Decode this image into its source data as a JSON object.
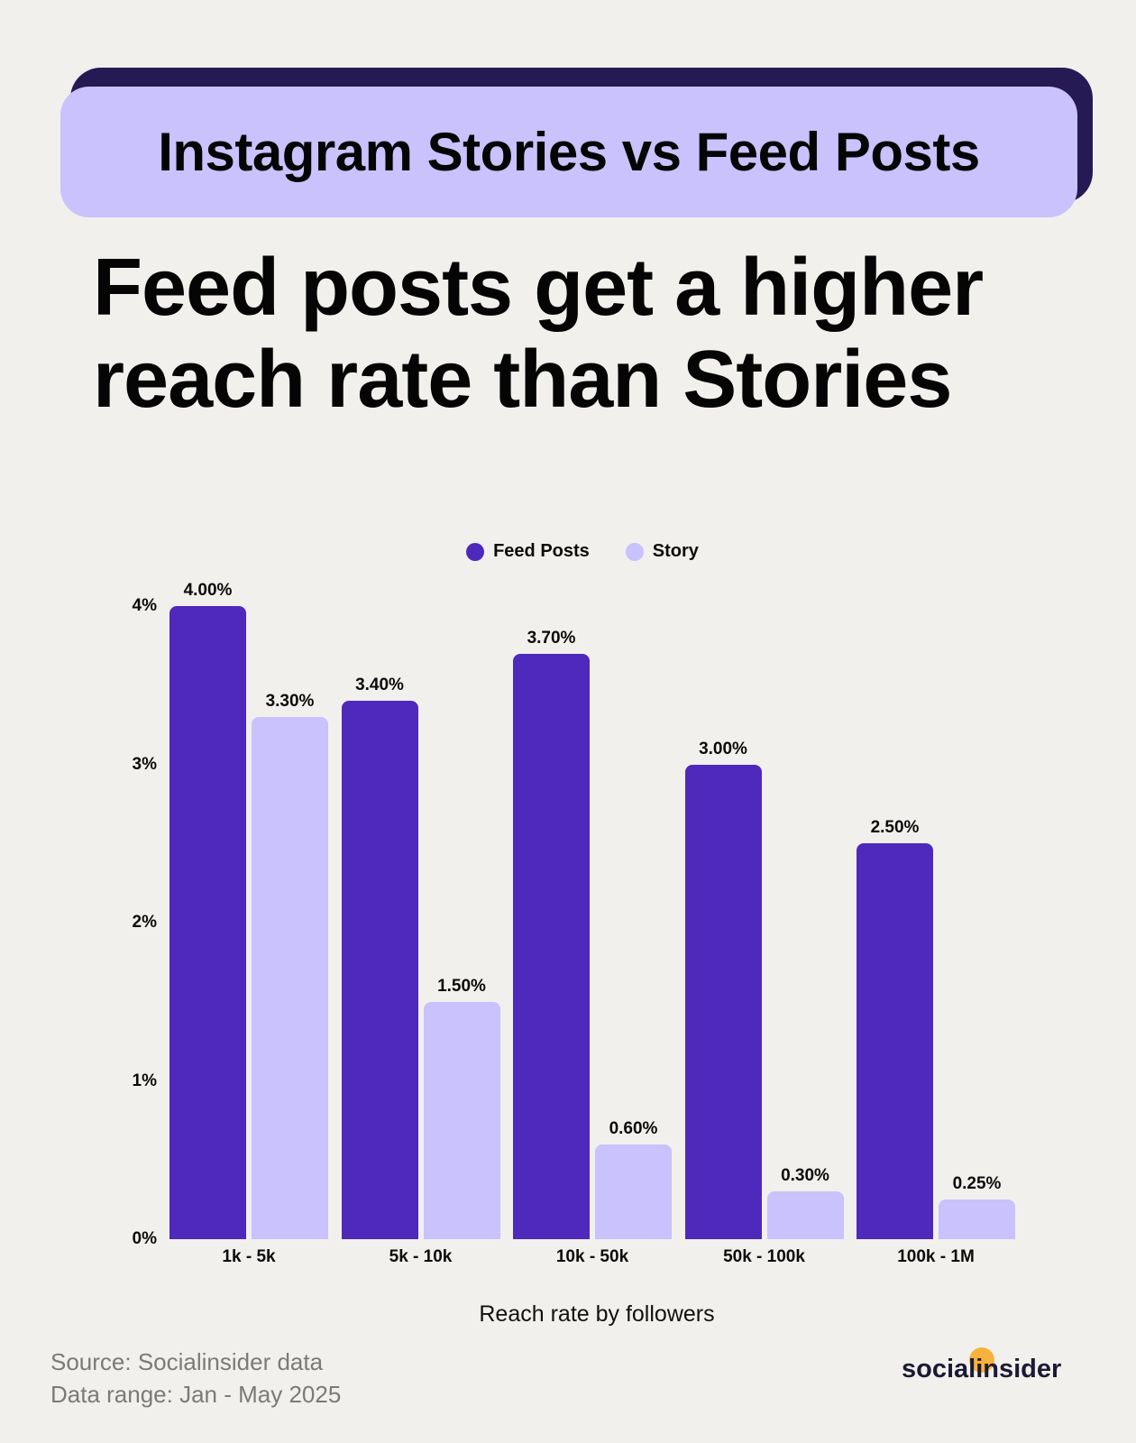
{
  "banner": {
    "title": "Instagram Stories vs Feed Posts"
  },
  "headline": {
    "line1": "Feed posts get a higher",
    "line2": "reach rate than Stories"
  },
  "legend": [
    {
      "label": "Feed Posts",
      "color": "#4e29bb"
    },
    {
      "label": "Story",
      "color": "#c9c2fc"
    }
  ],
  "chart_data": {
    "type": "bar",
    "title": "Feed posts get a higher reach rate than Stories",
    "subtitle": "Instagram Stories vs Feed Posts",
    "categories": [
      "1k - 5k",
      "5k - 10k",
      "10k - 50k",
      "50k - 100k",
      "100k - 1M"
    ],
    "series": [
      {
        "name": "Feed Posts",
        "values": [
          4.0,
          3.4,
          3.7,
          3.0,
          2.5
        ],
        "labels": [
          "4.00%",
          "3.40%",
          "3.70%",
          "3.00%",
          "2.50%"
        ],
        "color": "#4e29bb"
      },
      {
        "name": "Story",
        "values": [
          3.3,
          1.5,
          0.6,
          0.3,
          0.25
        ],
        "labels": [
          "3.30%",
          "1.50%",
          "0.60%",
          "0.30%",
          "0.25%"
        ],
        "color": "#c9c2fc"
      }
    ],
    "xlabel": "Reach rate by followers",
    "ylabel": "",
    "yticks": [
      "0%",
      "1%",
      "2%",
      "3%",
      "4%"
    ],
    "ylim": [
      0,
      4
    ],
    "grid": false,
    "legend_position": "top-center"
  },
  "footer": {
    "source": "Source: Socialinsider data",
    "range": "Data range: Jan - May 2025",
    "logo": "socialinsider"
  }
}
